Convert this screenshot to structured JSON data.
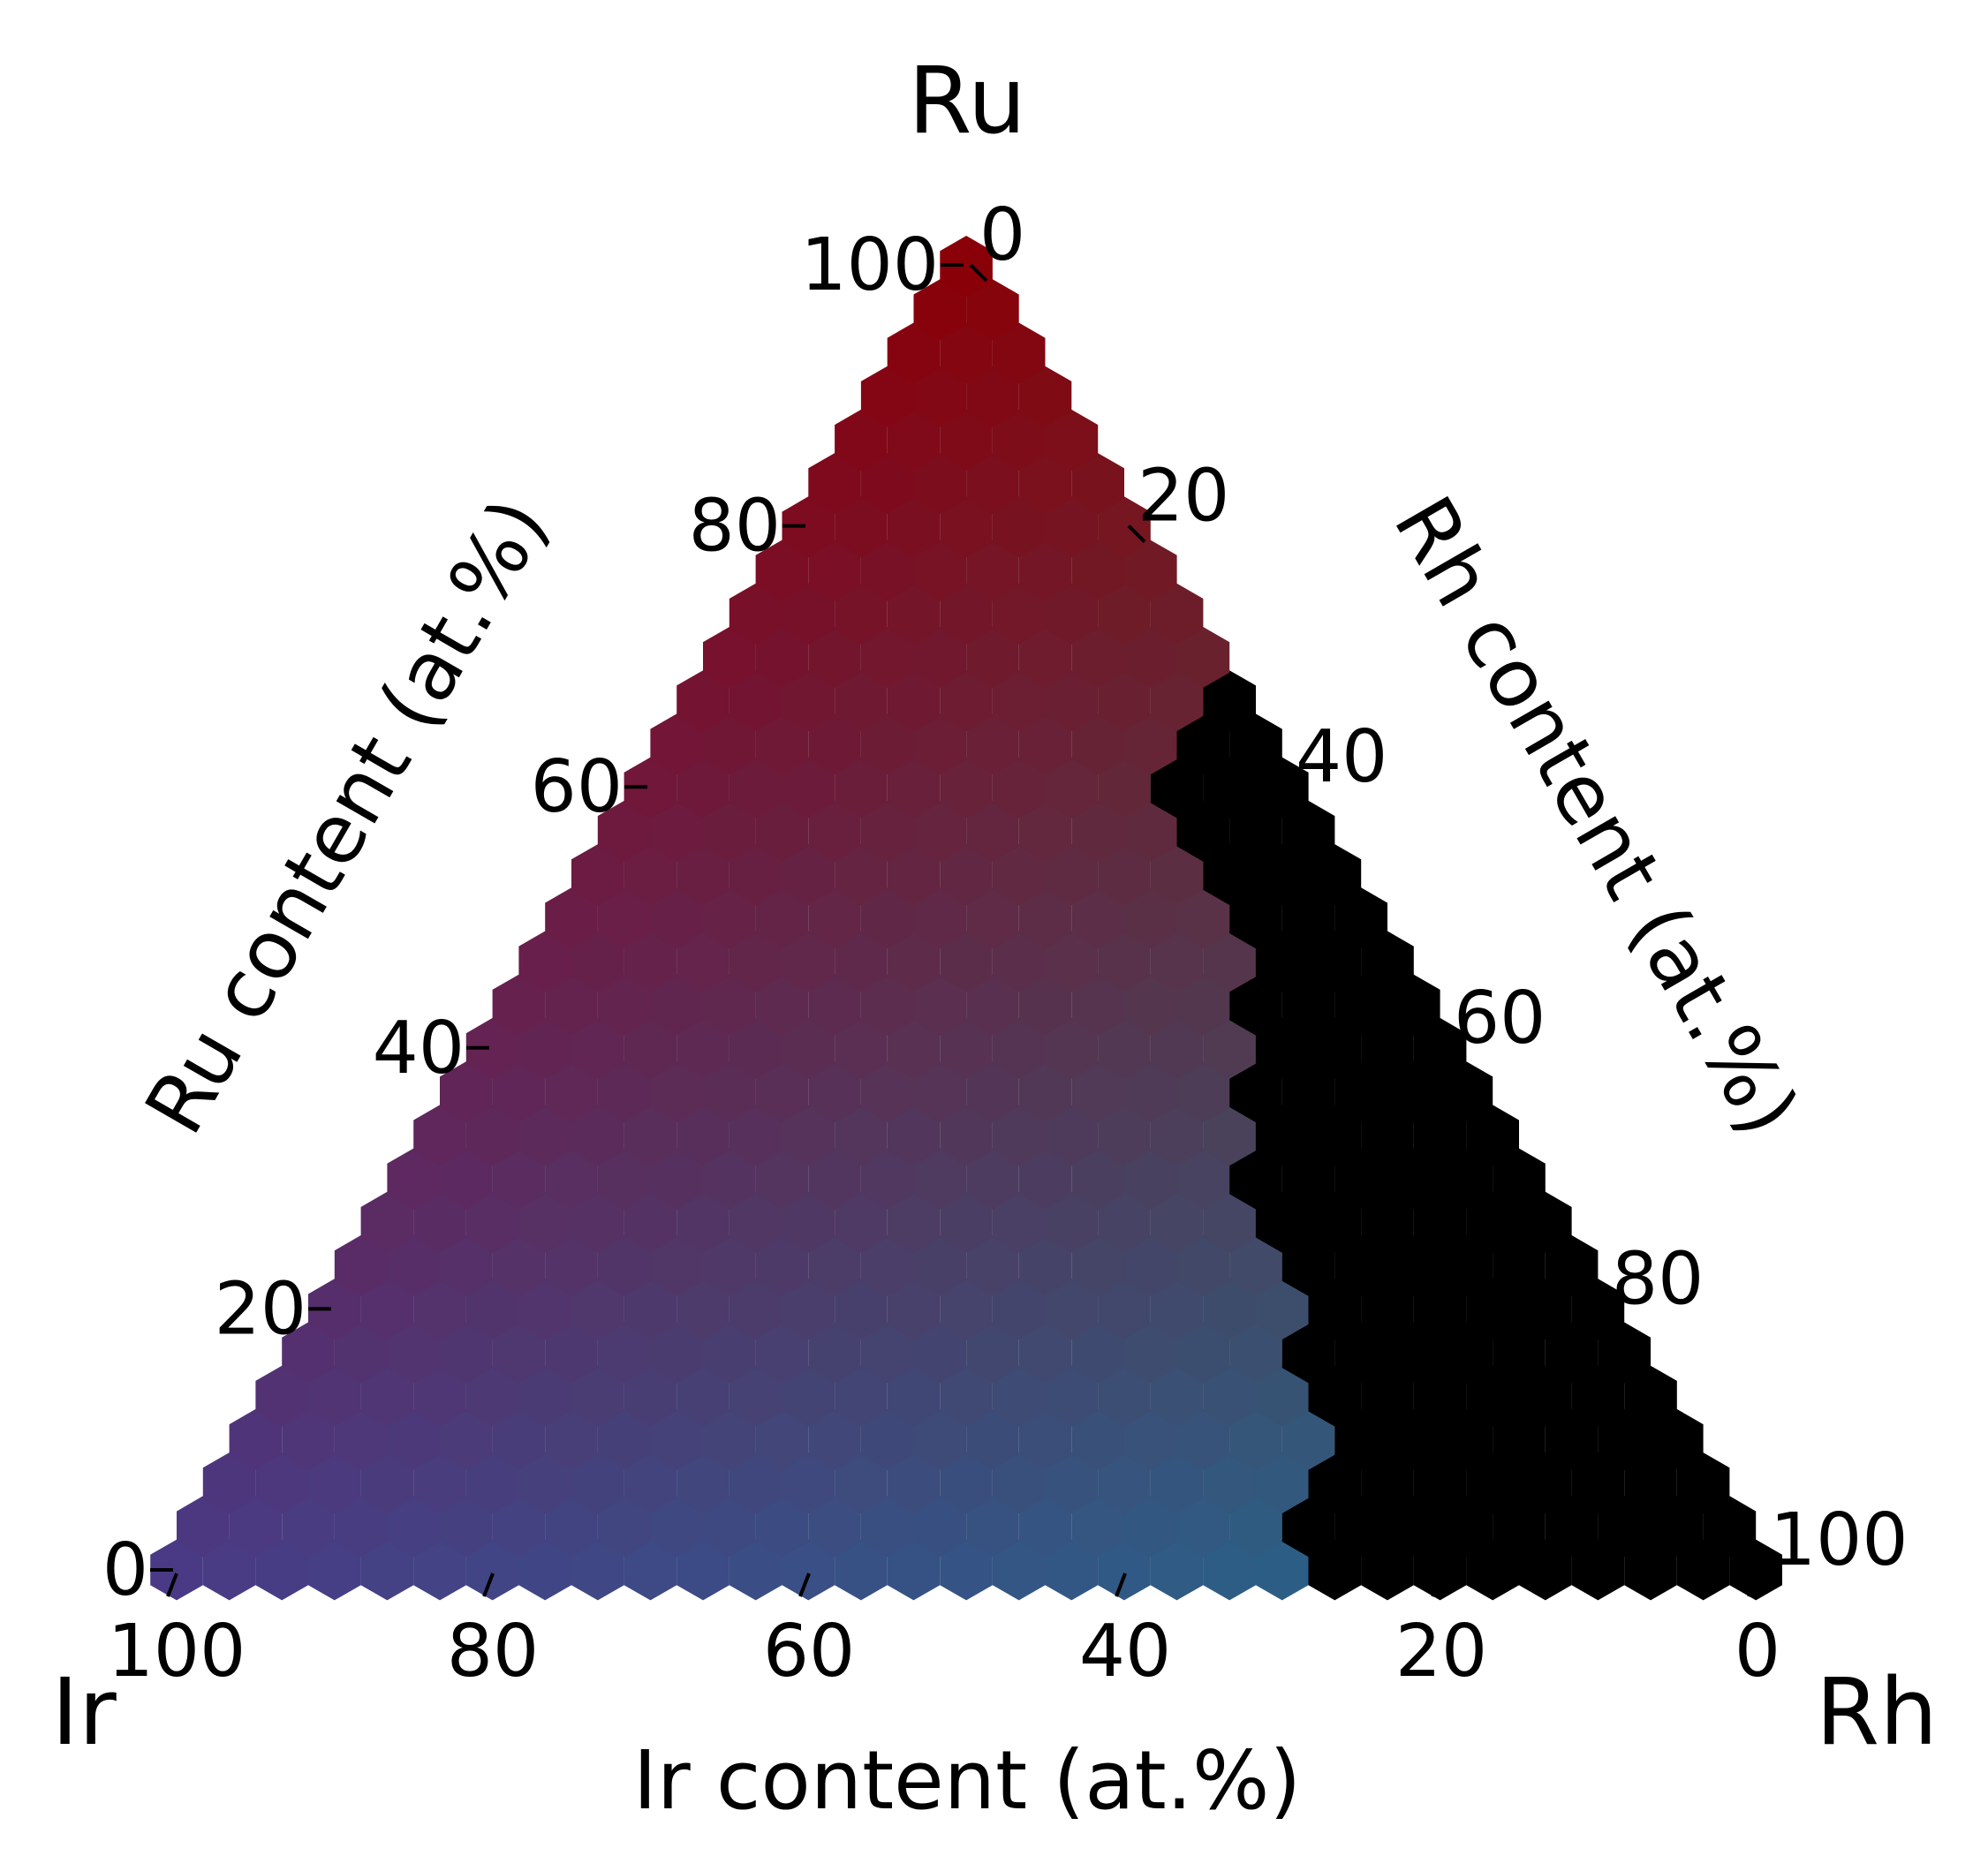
{
  "chart_data": {
    "type": "heatmap",
    "subtype": "ternary",
    "title": "",
    "corners": {
      "top": "Ru",
      "left": "Ir",
      "right": "Rh"
    },
    "axes": {
      "ru": {
        "label": "Ru content (at.%)",
        "ticks": [
          "0",
          "20",
          "40",
          "60",
          "80",
          "100"
        ]
      },
      "rh": {
        "label": "Rh content (at.%)",
        "ticks": [
          "0",
          "20",
          "40",
          "60",
          "80",
          "100"
        ]
      },
      "ir": {
        "label": "Ir content (at.%)",
        "ticks": [
          "100",
          "80",
          "60",
          "40",
          "20",
          "0"
        ]
      }
    },
    "grid_step_percent": 3.33,
    "boundary_note": "Cells with Rh above the boundary are black",
    "boundary_rh_percent_by_ru": [
      [
        0,
        70
      ],
      [
        10,
        67
      ],
      [
        20,
        60
      ],
      [
        30,
        53
      ],
      [
        40,
        47
      ],
      [
        50,
        43
      ],
      [
        60,
        33
      ],
      [
        70,
        30
      ],
      [
        80,
        25
      ],
      [
        90,
        17
      ],
      [
        100,
        0
      ]
    ],
    "colors": {
      "ru_rich": "#8a0008",
      "ir_rich": "#4a3a85",
      "rh_rich": "#1f6e85",
      "background_region": "#000000"
    }
  }
}
